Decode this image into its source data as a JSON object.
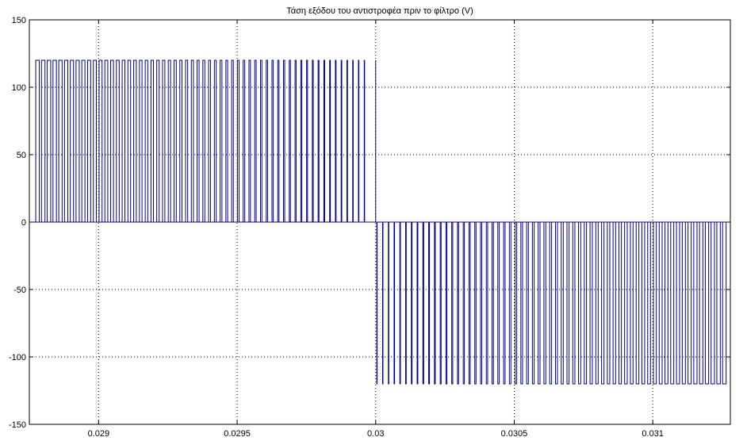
{
  "chart_data": {
    "type": "line",
    "title": "Τάση εξόδου του αντιστροφέα πριν το φίλτρο (V)",
    "xlabel": "",
    "ylabel": "",
    "xlim": [
      0.02875,
      0.03128
    ],
    "ylim": [
      -150,
      150
    ],
    "xticks": [
      0.029,
      0.0295,
      0.03,
      0.0305,
      0.031
    ],
    "xtick_labels": [
      "0.029",
      "0.0295",
      "0.03",
      "0.0305",
      "0.031"
    ],
    "yticks": [
      150,
      100,
      50,
      0,
      -50,
      -100,
      -150
    ],
    "ytick_labels": [
      "150",
      "100",
      "50",
      "0",
      "-50",
      "-100",
      "-150"
    ],
    "grid": true,
    "grid_style": "dotted",
    "line_color": "#00008b",
    "series": [
      {
        "description": "Unipolar PWM inverter output voltage: pulses from 0 to +120 V before 0.030 s and from 0 to -120 V after 0.030 s",
        "pulse_amplitude_positive": 120,
        "pulse_amplitude_negative": -120,
        "polarity_switch_x": 0.03,
        "pulse_period": 2.08e-05
      }
    ]
  }
}
